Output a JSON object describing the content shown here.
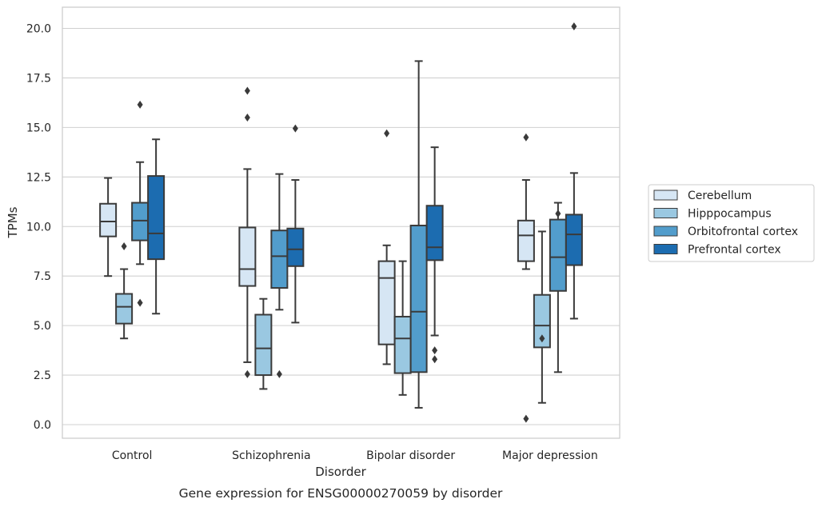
{
  "chart_data": {
    "type": "boxplot",
    "caption": "Gene expression for ENSG00000270059 by disorder",
    "xlabel": "Disorder",
    "ylabel": "TPMs",
    "ylim": [
      -0.7,
      21.2
    ],
    "yticks": [
      "0.0",
      "2.5",
      "5.0",
      "7.5",
      "10.0",
      "12.5",
      "15.0",
      "17.5",
      "20.0"
    ],
    "grid": "horizontal",
    "legend_position": "right",
    "categories": [
      "Control",
      "Schizophrenia",
      "Bipolar disorder",
      "Major depression"
    ],
    "series": [
      {
        "name": "Cerebellum",
        "color": "#d6e6f4",
        "boxes": [
          {
            "whislo": 7.5,
            "q1": 9.5,
            "med": 10.25,
            "q3": 11.15,
            "whishi": 12.45,
            "fliers": []
          },
          {
            "whislo": 3.15,
            "q1": 7.0,
            "med": 7.85,
            "q3": 9.95,
            "whishi": 12.9,
            "fliers": [
              2.55,
              15.5,
              16.85
            ]
          },
          {
            "whislo": 3.05,
            "q1": 4.05,
            "med": 7.4,
            "q3": 8.25,
            "whishi": 9.05,
            "fliers": [
              14.7
            ]
          },
          {
            "whislo": 7.85,
            "q1": 8.25,
            "med": 9.55,
            "q3": 10.3,
            "whishi": 12.35,
            "fliers": [
              0.3,
              14.5
            ]
          }
        ]
      },
      {
        "name": "Hipppocampus",
        "color": "#9ac8e1",
        "boxes": [
          {
            "whislo": 4.35,
            "q1": 5.1,
            "med": 5.95,
            "q3": 6.6,
            "whishi": 7.85,
            "fliers": [
              9.0
            ]
          },
          {
            "whislo": 1.8,
            "q1": 2.5,
            "med": 3.85,
            "q3": 5.55,
            "whishi": 6.35,
            "fliers": []
          },
          {
            "whislo": 1.5,
            "q1": 2.6,
            "med": 4.35,
            "q3": 5.45,
            "whishi": 8.25,
            "fliers": []
          },
          {
            "whislo": 1.1,
            "q1": 3.9,
            "med": 5.0,
            "q3": 6.55,
            "whishi": 9.75,
            "fliers": [
              4.35
            ]
          }
        ]
      },
      {
        "name": "Orbitofrontal cortex",
        "color": "#529dcc",
        "boxes": [
          {
            "whislo": 8.1,
            "q1": 9.3,
            "med": 10.3,
            "q3": 11.2,
            "whishi": 13.25,
            "fliers": [
              6.15,
              16.15
            ]
          },
          {
            "whislo": 5.8,
            "q1": 6.9,
            "med": 8.5,
            "q3": 9.8,
            "whishi": 12.65,
            "fliers": [
              2.55
            ]
          },
          {
            "whislo": 0.85,
            "q1": 2.65,
            "med": 5.7,
            "q3": 10.05,
            "whishi": 18.35,
            "fliers": []
          },
          {
            "whislo": 2.65,
            "q1": 6.75,
            "med": 8.45,
            "q3": 10.35,
            "whishi": 11.2,
            "fliers": [
              10.65
            ]
          }
        ]
      },
      {
        "name": "Prefrontal cortex",
        "color": "#1c6cb0",
        "boxes": [
          {
            "whislo": 5.6,
            "q1": 8.35,
            "med": 9.65,
            "q3": 12.55,
            "whishi": 14.4,
            "fliers": []
          },
          {
            "whislo": 5.15,
            "q1": 8.0,
            "med": 8.85,
            "q3": 9.9,
            "whishi": 12.35,
            "fliers": [
              14.95
            ]
          },
          {
            "whislo": 4.5,
            "q1": 8.3,
            "med": 8.95,
            "q3": 11.05,
            "whishi": 14.0,
            "fliers": [
              3.3,
              3.75
            ]
          },
          {
            "whislo": 5.35,
            "q1": 8.05,
            "med": 9.6,
            "q3": 10.6,
            "whishi": 12.7,
            "fliers": [
              20.1
            ]
          }
        ]
      }
    ]
  }
}
